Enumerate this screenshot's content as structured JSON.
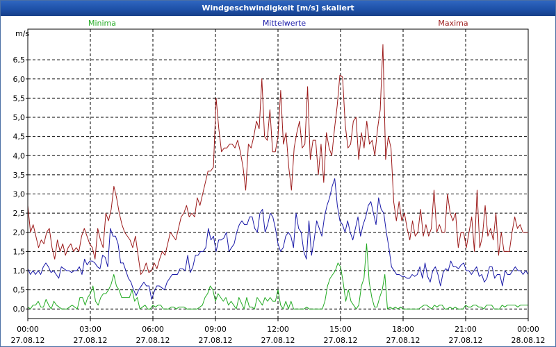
{
  "window": {
    "title": "Windgeschwindigkeit [m/s] skaliert"
  },
  "colors": {
    "minima": "#22aa22",
    "mittel": "#1a1aa8",
    "maxima": "#9c1a1a",
    "grid": "#000000"
  },
  "chart_data": {
    "type": "line",
    "title": "Windgeschwindigkeit [m/s] skaliert",
    "ylabel": "m/s",
    "xlabel": "",
    "ylim": [
      -0.25,
      7.3
    ],
    "xlim": [
      0,
      24
    ],
    "yticks": [
      "0,0",
      "0,5",
      "1,0",
      "1,5",
      "2,0",
      "2,5",
      "3,0",
      "3,5",
      "4,0",
      "4,5",
      "5,0",
      "5,5",
      "6,0",
      "6,5"
    ],
    "ytick_values": [
      0,
      0.5,
      1,
      1.5,
      2,
      2.5,
      3,
      3.5,
      4,
      4.5,
      5,
      5.5,
      6,
      6.5
    ],
    "xticks": [
      {
        "x": 0,
        "time": "00:00",
        "date": "27.08.12"
      },
      {
        "x": 3,
        "time": "03:00",
        "date": "27.08.12"
      },
      {
        "x": 6,
        "time": "06:00",
        "date": "27.08.12"
      },
      {
        "x": 9,
        "time": "09:00",
        "date": "27.08.12"
      },
      {
        "x": 12,
        "time": "12:00",
        "date": "27.08.12"
      },
      {
        "x": 15,
        "time": "15:00",
        "date": "27.08.12"
      },
      {
        "x": 18,
        "time": "18:00",
        "date": "27.08.12"
      },
      {
        "x": 21,
        "time": "21:00",
        "date": "27.08.12"
      },
      {
        "x": 24,
        "time": "00:00",
        "date": "28.08.12"
      }
    ],
    "legend": [
      {
        "name": "Minima",
        "color": "#22aa22",
        "position": "left"
      },
      {
        "name": "Mittelwerte",
        "color": "#1a1aa8",
        "position": "center"
      },
      {
        "name": "Maxima",
        "color": "#9c1a1a",
        "position": "right"
      }
    ],
    "series": [
      {
        "name": "Maxima",
        "color": "#9c1a1a",
        "values": [
          2.7,
          2.0,
          2.2,
          1.9,
          1.6,
          1.8,
          1.7,
          2.0,
          2.1,
          1.6,
          1.3,
          1.8,
          1.5,
          1.7,
          1.4,
          1.6,
          1.7,
          1.5,
          1.6,
          1.5,
          1.9,
          2.1,
          1.9,
          1.7,
          1.6,
          1.3,
          2.1,
          1.8,
          1.6,
          2.5,
          2.3,
          2.6,
          3.2,
          2.9,
          2.5,
          2.2,
          2.0,
          1.9,
          1.8,
          1.6,
          1.9,
          1.4,
          0.9,
          1.0,
          1.2,
          0.95,
          1.0,
          1.2,
          1.05,
          1.3,
          1.5,
          1.4,
          1.7,
          2.0,
          1.9,
          1.8,
          2.1,
          2.4,
          2.5,
          2.7,
          2.4,
          2.5,
          2.4,
          2.9,
          2.7,
          3.0,
          3.3,
          3.6,
          3.6,
          3.7,
          5.5,
          4.7,
          4.1,
          4.2,
          4.2,
          4.3,
          4.3,
          4.2,
          4.4,
          4.1,
          3.7,
          3.1,
          4.3,
          4.2,
          4.5,
          4.9,
          4.7,
          6.0,
          4.5,
          4.4,
          5.2,
          4.1,
          4.1,
          4.5,
          5.7,
          4.3,
          4.6,
          3.7,
          3.1,
          4.2,
          4.6,
          4.9,
          4.2,
          4.3,
          5.8,
          3.9,
          4.4,
          4.4,
          3.5,
          4.3,
          3.3,
          4.6,
          4.2,
          4.0,
          4.7,
          5.3,
          6.1,
          6.05,
          4.8,
          4.2,
          4.3,
          4.9,
          5.0,
          3.9,
          4.6,
          4.2,
          4.9,
          4.3,
          4.4,
          4.0,
          4.7,
          5.2,
          6.9,
          3.9,
          4.5,
          4.2,
          2.8,
          2.3,
          2.8,
          2.3,
          2.5,
          2.1,
          1.8,
          2.3,
          1.9,
          2.0,
          2.6,
          1.9,
          2.2,
          1.9,
          2.1,
          3.1,
          2.0,
          2.2,
          2.0,
          2.0,
          3.0,
          2.5,
          2.3,
          2.5,
          1.6,
          2.0,
          2.0,
          1.6,
          2.0,
          2.4,
          1.5,
          3.1,
          1.6,
          1.9,
          2.7,
          1.9,
          2.1,
          1.8,
          2.5,
          1.4,
          2.0,
          1.5,
          1.5,
          1.5,
          2.0,
          2.4,
          2.1,
          2.2,
          2.0,
          2.0,
          2.0
        ]
      },
      {
        "name": "Mittelwerte",
        "color": "#1a1aa8",
        "values": [
          1.05,
          0.9,
          1.0,
          0.9,
          1.0,
          0.9,
          1.1,
          1.2,
          1.1,
          0.95,
          1.0,
          0.9,
          0.8,
          1.1,
          1.05,
          1.0,
          1.0,
          0.95,
          1.0,
          1.0,
          1.1,
          0.9,
          1.3,
          1.15,
          1.25,
          1.25,
          1.2,
          1.1,
          1.05,
          1.4,
          1.35,
          1.1,
          2.1,
          1.9,
          1.9,
          1.7,
          1.2,
          1.2,
          1.0,
          0.8,
          0.7,
          0.5,
          0.35,
          0.5,
          0.6,
          0.7,
          0.6,
          0.6,
          0.25,
          0.45,
          0.6,
          0.6,
          0.55,
          0.5,
          0.7,
          0.8,
          0.9,
          0.9,
          0.9,
          1.05,
          1.05,
          1.0,
          1.4,
          0.95,
          1.1,
          1.4,
          1.4,
          1.5,
          1.5,
          1.6,
          2.1,
          1.8,
          1.9,
          1.5,
          1.8,
          1.8,
          1.85,
          2.0,
          1.5,
          1.6,
          1.7,
          2.0,
          2.2,
          2.3,
          2.2,
          2.2,
          2.4,
          2.4,
          2.1,
          2.0,
          2.5,
          2.6,
          2.0,
          2.2,
          2.5,
          2.4,
          2.1,
          1.7,
          1.5,
          1.6,
          1.9,
          2.0,
          1.9,
          1.6,
          2.5,
          2.1,
          2.0,
          1.5,
          1.3,
          2.3,
          1.4,
          1.8,
          2.3,
          2.1,
          1.9,
          2.4,
          2.7,
          2.9,
          3.2,
          3.4,
          2.7,
          2.3,
          2.2,
          2.0,
          2.3,
          2.0,
          1.8,
          2.1,
          2.4,
          1.9,
          2.2,
          2.4,
          2.7,
          2.8,
          2.5,
          2.2,
          2.9,
          2.6,
          2.5,
          2.0,
          1.6,
          1.1,
          1.0,
          0.9,
          0.9,
          0.85,
          0.85,
          0.8,
          0.8,
          0.9,
          0.85,
          0.9,
          1.1,
          0.8,
          1.2,
          0.85,
          0.7,
          1.0,
          1.1,
          0.9,
          0.6,
          0.95,
          1.05,
          1.0,
          1.25,
          1.1,
          1.1,
          1.05,
          1.15,
          1.2,
          1.0,
          1.0,
          0.9,
          1.0,
          1.1,
          0.85,
          0.9,
          0.7,
          0.8,
          1.1,
          1.1,
          0.8,
          0.9,
          0.9,
          0.6,
          1.0,
          0.9,
          0.9,
          1.0,
          1.1,
          1.0,
          1.0,
          0.9,
          1.0,
          0.9
        ]
      },
      {
        "name": "Minima",
        "color": "#22aa22",
        "values": [
          0.05,
          0.0,
          0.1,
          0.1,
          0.2,
          0.05,
          0.05,
          0.25,
          0.1,
          0.0,
          0.2,
          0.1,
          0.05,
          0.0,
          0.0,
          0.0,
          0.05,
          0.1,
          0.05,
          0.0,
          0.3,
          0.3,
          0.1,
          0.3,
          0.4,
          0.6,
          0.2,
          0.1,
          0.3,
          0.4,
          0.4,
          0.5,
          0.65,
          0.9,
          0.6,
          0.5,
          0.3,
          0.3,
          0.3,
          0.3,
          0.5,
          0.2,
          0.3,
          0.0,
          0.05,
          0.1,
          0.0,
          0.0,
          0.1,
          0.05,
          0.1,
          0.1,
          0.0,
          0.0,
          0.0,
          0.05,
          0.05,
          0.0,
          0.05,
          0.05,
          0.05,
          0.0,
          0.0,
          0.0,
          0.0,
          0.0,
          0.05,
          0.1,
          0.3,
          0.4,
          0.6,
          0.5,
          0.2,
          0.4,
          0.3,
          0.2,
          0.3,
          0.1,
          0.2,
          0.1,
          0.0,
          0.3,
          0.15,
          0.0,
          0.3,
          0.05,
          0.05,
          0.0,
          0.3,
          0.2,
          0.1,
          0.3,
          0.2,
          0.3,
          0.2,
          0.2,
          0.5,
          0.1,
          0.0,
          0.2,
          0.0,
          0.2,
          0.0,
          0.0,
          0.0,
          0.0,
          0.0,
          0.05,
          0.0,
          0.0,
          0.0,
          0.0,
          0.0,
          0.0,
          0.2,
          0.6,
          0.8,
          0.9,
          1.0,
          1.2,
          1.1,
          0.7,
          0.2,
          0.5,
          0.2,
          0.1,
          0.0,
          0.1,
          0.6,
          0.8,
          1.7,
          0.7,
          0.3,
          0.05,
          0.05,
          0.3,
          0.5,
          0.9,
          0.0,
          0.05,
          0.0,
          0.05,
          0.0,
          0.05,
          0.0,
          0.0,
          0.0,
          0.0,
          0.0,
          0.0,
          0.0,
          0.05,
          0.1,
          0.1,
          0.05,
          0.0,
          0.1,
          0.05,
          0.1,
          0.1,
          0.0,
          0.0,
          0.05,
          0.0,
          0.05,
          0.0,
          0.0,
          0.0,
          0.1,
          0.05,
          0.05,
          0.1,
          0.1,
          0.05,
          0.05,
          0.0,
          0.1,
          0.1,
          0.1,
          0.0,
          0.0,
          0.0,
          0.1,
          0.05,
          0.1,
          0.1,
          0.1,
          0.1,
          0.05,
          0.1,
          0.1,
          0.1,
          0.1
        ]
      }
    ]
  }
}
